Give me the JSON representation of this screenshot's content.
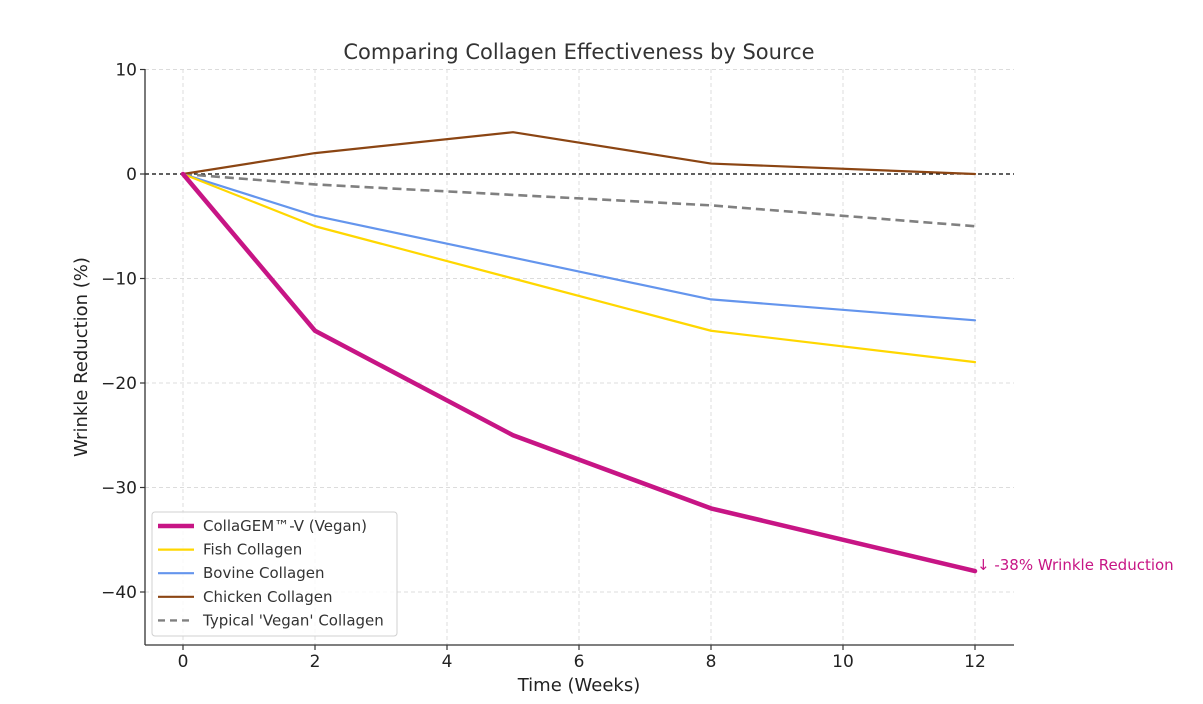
{
  "chart_data": {
    "type": "line",
    "title": "Comparing Collagen Effectiveness by Source",
    "xlabel": "Time (Weeks)",
    "ylabel": "Wrinkle Reduction (%)",
    "xlim": [
      -0.6,
      12.6
    ],
    "ylim": [
      -45,
      10
    ],
    "xticks": [
      0,
      2,
      4,
      6,
      8,
      10,
      12
    ],
    "xtick_labels": [
      "0",
      "2",
      "4",
      "6",
      "8",
      "10",
      "12"
    ],
    "yticks": [
      10,
      0,
      -10,
      -20,
      -30,
      -40
    ],
    "ytick_labels": [
      "10",
      "0",
      "−10",
      "−20",
      "−30",
      "−40"
    ],
    "grid": true,
    "reference_line": {
      "y": 0,
      "style": "dashed",
      "color": "#000000"
    },
    "x": [
      0,
      2,
      5,
      8,
      12
    ],
    "series": [
      {
        "name": "CollaGEM™-V (Vegan)",
        "values": [
          0,
          -15,
          -25,
          -32,
          -38
        ],
        "color": "#C71585",
        "style": "solid",
        "emphasis": true
      },
      {
        "name": "Fish Collagen",
        "values": [
          0,
          -5,
          -10,
          -15,
          -18
        ],
        "color": "#FFD700",
        "style": "solid"
      },
      {
        "name": "Bovine Collagen",
        "values": [
          0,
          -4,
          -8,
          -12,
          -14
        ],
        "color": "#6495ED",
        "style": "solid"
      },
      {
        "name": "Chicken Collagen",
        "values": [
          0,
          2,
          4,
          1,
          0
        ],
        "color": "#8B4513",
        "style": "solid"
      },
      {
        "name": "Typical 'Vegan' Collagen",
        "values": [
          0,
          -1,
          -2,
          -3,
          -5
        ],
        "color": "#808080",
        "style": "dashed"
      }
    ],
    "legend_position": "lower-left",
    "annotations": [
      {
        "text": "↓ -38% Wrinkle Reduction",
        "x": 12,
        "y": -38,
        "color": "#C71585"
      }
    ]
  }
}
